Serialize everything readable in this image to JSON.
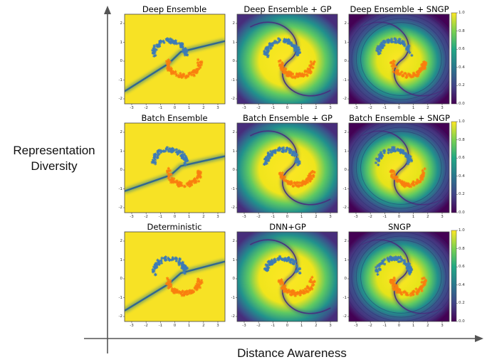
{
  "figure": {
    "y_axis_title": [
      "Representation",
      "Diversity"
    ],
    "x_axis_title": "Distance Awareness",
    "panels": [
      [
        "Deep Ensemble",
        "Deep Ensemble + GP",
        "Deep Ensemble + SNGP"
      ],
      [
        "Batch Ensemble",
        "Batch Ensemble + GP",
        "Batch Ensemble + SNGP"
      ],
      [
        "Deterministic",
        "DNN+GP",
        "SNGP"
      ]
    ],
    "x_ticks": [
      "-3",
      "-2",
      "-1",
      "0",
      "1",
      "2",
      "3"
    ],
    "y_ticks": [
      "2",
      "1",
      "0",
      "-1",
      "-2"
    ],
    "colorbar_ticks": [
      "1.0",
      "0.8",
      "0.6",
      "0.4",
      "0.2",
      "0.0"
    ],
    "colors": {
      "yellow": "#f7e225",
      "dark_purple": "#440154",
      "blue_class": "#3c7ab6",
      "orange_class": "#f97f0f"
    }
  }
}
